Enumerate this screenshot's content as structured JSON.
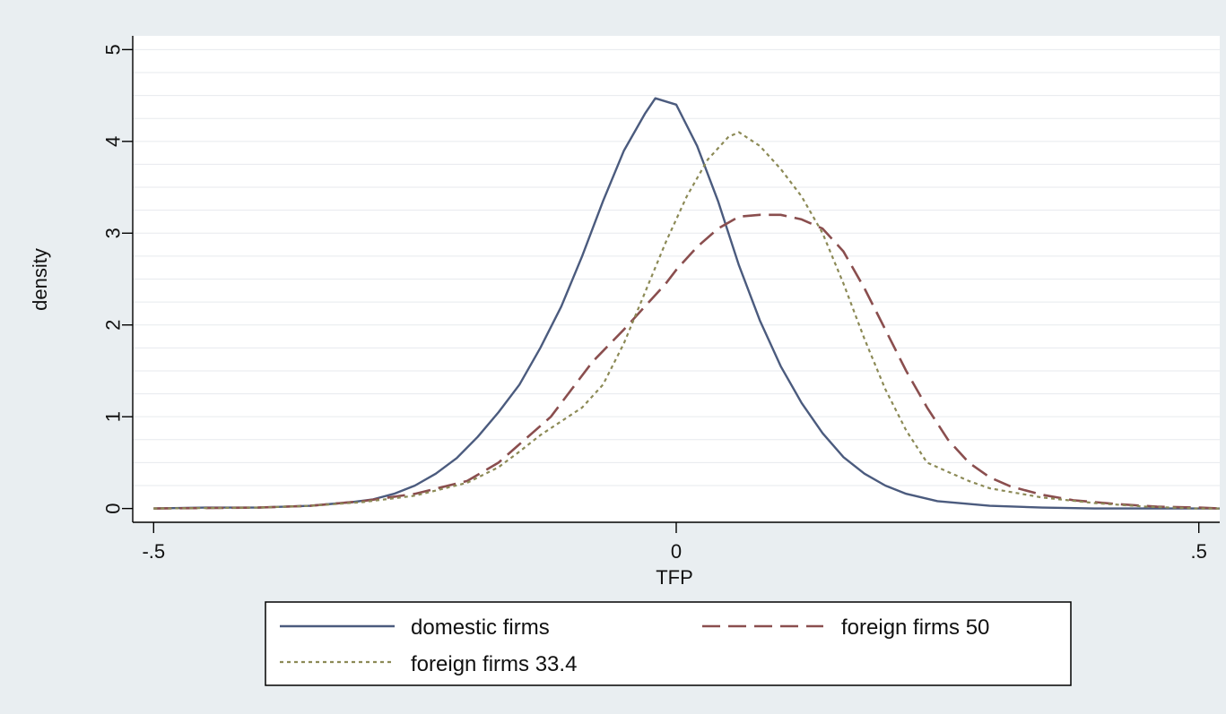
{
  "colors": {
    "background": "#e9eef1",
    "plot_area": "#ffffff",
    "grid": "#e7eaee",
    "domestic": "#4b5b7e",
    "foreign50": "#8a4e4e",
    "foreign334": "#8c8a56"
  },
  "chart_data": {
    "type": "line",
    "title": "",
    "xlabel": "TFP",
    "ylabel": "density",
    "xlim": [
      -0.52,
      0.52
    ],
    "ylim": [
      -0.15,
      5.15
    ],
    "x_ticks": [
      -0.5,
      0,
      0.5
    ],
    "x_tick_labels": [
      "-.5",
      "0",
      ".5"
    ],
    "y_ticks": [
      0,
      1,
      2,
      3,
      4,
      5
    ],
    "y_tick_labels": [
      "0",
      "1",
      "2",
      "3",
      "4",
      "5"
    ],
    "grid": true,
    "legend_position": "bottom",
    "series": [
      {
        "name": "domestic firms",
        "style": "solid",
        "x": [
          -0.5,
          -0.45,
          -0.4,
          -0.35,
          -0.33,
          -0.31,
          -0.29,
          -0.27,
          -0.25,
          -0.23,
          -0.21,
          -0.19,
          -0.17,
          -0.15,
          -0.13,
          -0.11,
          -0.09,
          -0.07,
          -0.05,
          -0.03,
          -0.02,
          0.0,
          0.02,
          0.04,
          0.06,
          0.08,
          0.1,
          0.12,
          0.14,
          0.16,
          0.18,
          0.2,
          0.22,
          0.25,
          0.3,
          0.35,
          0.4,
          0.45,
          0.5,
          0.52
        ],
        "y": [
          0.0,
          0.01,
          0.01,
          0.03,
          0.05,
          0.07,
          0.1,
          0.16,
          0.25,
          0.38,
          0.55,
          0.78,
          1.05,
          1.35,
          1.75,
          2.2,
          2.75,
          3.35,
          3.9,
          4.3,
          4.47,
          4.4,
          3.95,
          3.35,
          2.65,
          2.05,
          1.55,
          1.15,
          0.82,
          0.56,
          0.38,
          0.25,
          0.16,
          0.08,
          0.03,
          0.01,
          0.0,
          0.0,
          0.0,
          0.0
        ]
      },
      {
        "name": "foreign firms 50",
        "style": "dash",
        "x": [
          -0.5,
          -0.4,
          -0.35,
          -0.3,
          -0.25,
          -0.2,
          -0.17,
          -0.15,
          -0.12,
          -0.1,
          -0.08,
          -0.05,
          -0.03,
          -0.01,
          0.0,
          0.02,
          0.04,
          0.06,
          0.08,
          0.1,
          0.12,
          0.14,
          0.16,
          0.18,
          0.2,
          0.22,
          0.24,
          0.26,
          0.28,
          0.3,
          0.32,
          0.35,
          0.38,
          0.42,
          0.46,
          0.5,
          0.52
        ],
        "y": [
          0.0,
          0.01,
          0.03,
          0.08,
          0.16,
          0.3,
          0.5,
          0.7,
          1.0,
          1.3,
          1.6,
          1.95,
          2.2,
          2.45,
          2.6,
          2.85,
          3.05,
          3.18,
          3.2,
          3.2,
          3.15,
          3.05,
          2.8,
          2.4,
          1.95,
          1.5,
          1.1,
          0.75,
          0.5,
          0.34,
          0.24,
          0.15,
          0.09,
          0.05,
          0.02,
          0.01,
          0.0
        ]
      },
      {
        "name": "foreign firms 33.4",
        "style": "dot",
        "x": [
          -0.5,
          -0.4,
          -0.35,
          -0.3,
          -0.25,
          -0.2,
          -0.17,
          -0.15,
          -0.13,
          -0.11,
          -0.09,
          -0.07,
          -0.05,
          -0.03,
          -0.01,
          0.01,
          0.03,
          0.05,
          0.06,
          0.08,
          0.1,
          0.12,
          0.14,
          0.16,
          0.18,
          0.2,
          0.22,
          0.24,
          0.26,
          0.28,
          0.3,
          0.35,
          0.4,
          0.45,
          0.5,
          0.52
        ],
        "y": [
          0.0,
          0.01,
          0.03,
          0.07,
          0.14,
          0.28,
          0.45,
          0.62,
          0.8,
          0.95,
          1.1,
          1.35,
          1.8,
          2.35,
          2.9,
          3.4,
          3.8,
          4.05,
          4.1,
          3.95,
          3.7,
          3.4,
          3.0,
          2.45,
          1.85,
          1.3,
          0.85,
          0.5,
          0.4,
          0.3,
          0.22,
          0.12,
          0.06,
          0.02,
          0.0,
          0.0
        ]
      }
    ]
  }
}
